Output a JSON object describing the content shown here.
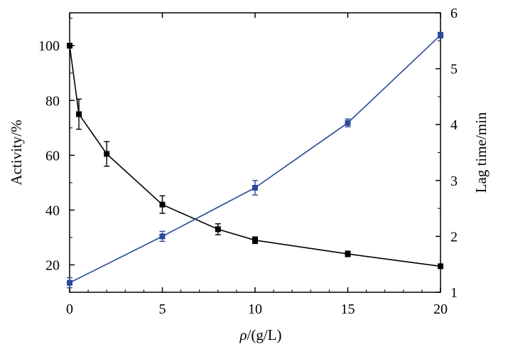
{
  "chart_data": {
    "type": "line",
    "xlabel_symbol": "ρ",
    "xlabel_rest": "/(g/L)",
    "ylabel_left": "Activity/%",
    "ylabel_right": "Lag time/min",
    "xlim": [
      0,
      20
    ],
    "ylim_left": [
      10,
      112
    ],
    "ylim_right": [
      1,
      6
    ],
    "x_ticks": [
      0,
      5,
      10,
      15,
      20
    ],
    "y_left_ticks": [
      20,
      40,
      60,
      80,
      100
    ],
    "y_right_ticks": [
      1,
      2,
      3,
      4,
      5,
      6
    ],
    "grid": false,
    "series": [
      {
        "axis": "left",
        "color": "#000000",
        "marker": "square",
        "points": [
          {
            "x": 0,
            "y": 100,
            "err": 0
          },
          {
            "x": 0.5,
            "y": 75,
            "err": 5.5
          },
          {
            "x": 2,
            "y": 60.5,
            "err": 4.5
          },
          {
            "x": 5,
            "y": 42,
            "err": 3.2
          },
          {
            "x": 8,
            "y": 33,
            "err": 2
          },
          {
            "x": 10,
            "y": 29,
            "err": 1.2
          },
          {
            "x": 15,
            "y": 24,
            "err": 1
          },
          {
            "x": 20,
            "y": 19.5,
            "err": 0
          }
        ]
      },
      {
        "axis": "right",
        "color": "#2b4a9a",
        "marker": "square",
        "points": [
          {
            "x": 0,
            "y": 1.17,
            "err": 0.09
          },
          {
            "x": 5,
            "y": 2.0,
            "err": 0.09
          },
          {
            "x": 10,
            "y": 2.87,
            "err": 0.13
          },
          {
            "x": 15,
            "y": 4.03,
            "err": 0.07
          },
          {
            "x": 20,
            "y": 5.6,
            "err": 0.05
          }
        ]
      }
    ]
  }
}
